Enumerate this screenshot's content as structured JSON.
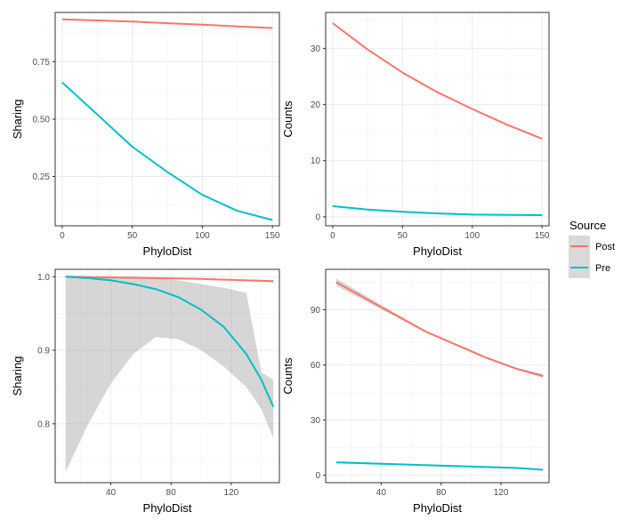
{
  "chart_data": [
    {
      "type": "line",
      "panel": "top-left",
      "xlabel": "PhyloDist",
      "ylabel": "Sharing",
      "xlim": [
        -5,
        155
      ],
      "ylim": [
        0.035,
        0.965
      ],
      "xticks": [
        0,
        50,
        100,
        150
      ],
      "xtick_labels": [
        "0",
        "50",
        "100",
        "150"
      ],
      "yticks": [
        0.25,
        0.5,
        0.75
      ],
      "ytick_labels": [
        "0.25",
        "0.50",
        "0.75"
      ],
      "grid": true,
      "series": [
        {
          "name": "Post",
          "color": "#F8766D",
          "x": [
            0,
            25,
            50,
            75,
            100,
            125,
            150
          ],
          "y": [
            0.935,
            0.93,
            0.925,
            0.918,
            0.912,
            0.904,
            0.897
          ]
        },
        {
          "name": "Pre",
          "color": "#00BFC4",
          "x": [
            0,
            25,
            50,
            75,
            100,
            125,
            150
          ],
          "y": [
            0.66,
            0.52,
            0.38,
            0.27,
            0.17,
            0.1,
            0.06
          ]
        }
      ]
    },
    {
      "type": "line",
      "panel": "top-right",
      "xlabel": "PhyloDist",
      "ylabel": "Counts",
      "xlim": [
        -5,
        155
      ],
      "ylim": [
        -1.6,
        36.4
      ],
      "xticks": [
        0,
        50,
        100,
        150
      ],
      "xtick_labels": [
        "0",
        "50",
        "100",
        "150"
      ],
      "yticks": [
        0,
        10,
        20,
        30
      ],
      "ytick_labels": [
        "0",
        "10",
        "20",
        "30"
      ],
      "grid": true,
      "series": [
        {
          "name": "Post",
          "color": "#F8766D",
          "x": [
            0,
            25,
            50,
            75,
            100,
            125,
            150
          ],
          "y": [
            34.5,
            29.8,
            25.7,
            22.2,
            19.2,
            16.4,
            13.9
          ]
        },
        {
          "name": "Pre",
          "color": "#00BFC4",
          "x": [
            0,
            25,
            50,
            75,
            100,
            125,
            150
          ],
          "y": [
            1.9,
            1.3,
            0.9,
            0.6,
            0.4,
            0.35,
            0.3
          ]
        }
      ]
    },
    {
      "type": "line",
      "panel": "bottom-left",
      "xlabel": "PhyloDist",
      "ylabel": "Sharing",
      "xlim": [
        3,
        152
      ],
      "ylim": [
        0.72,
        1.01
      ],
      "xticks": [
        40,
        80,
        120
      ],
      "xtick_labels": [
        "40",
        "80",
        "120"
      ],
      "yticks": [
        0.8,
        0.9,
        1.0
      ],
      "ytick_labels": [
        "0.8",
        "0.9",
        "1.0"
      ],
      "grid": true,
      "series": [
        {
          "name": "Post",
          "color": "#F8766D",
          "x": [
            10,
            40,
            70,
            100,
            130,
            148
          ],
          "y": [
            1.0,
            0.999,
            0.998,
            0.997,
            0.995,
            0.994
          ],
          "lower": [
            0.999,
            0.998,
            0.997,
            0.996,
            0.994,
            0.992
          ],
          "upper": [
            1.0,
            1.0,
            0.999,
            0.998,
            0.996,
            0.995
          ]
        },
        {
          "name": "Pre",
          "color": "#00BFC4",
          "x": [
            10,
            25,
            40,
            55,
            70,
            85,
            100,
            115,
            130,
            140,
            148
          ],
          "y": [
            1.0,
            0.998,
            0.995,
            0.99,
            0.983,
            0.972,
            0.955,
            0.932,
            0.895,
            0.86,
            0.823
          ],
          "lower": [
            0.735,
            0.8,
            0.855,
            0.895,
            0.918,
            0.915,
            0.9,
            0.878,
            0.85,
            0.82,
            0.78
          ],
          "upper": [
            1.0,
            1.0,
            1.0,
            1.0,
            0.998,
            0.995,
            0.99,
            0.985,
            0.978,
            0.87,
            0.86
          ]
        }
      ]
    },
    {
      "type": "line",
      "panel": "bottom-right",
      "xlabel": "PhyloDist",
      "ylabel": "Counts",
      "xlim": [
        3,
        152
      ],
      "ylim": [
        -4,
        112
      ],
      "xticks": [
        40,
        80,
        120
      ],
      "xtick_labels": [
        "40",
        "80",
        "120"
      ],
      "yticks": [
        0,
        30,
        60,
        90
      ],
      "ytick_labels": [
        "0",
        "30",
        "60",
        "90"
      ],
      "grid": true,
      "series": [
        {
          "name": "Post",
          "color": "#F8766D",
          "x": [
            10,
            30,
            50,
            70,
            90,
            110,
            130,
            148
          ],
          "y": [
            105,
            96,
            87,
            78,
            71,
            64,
            58,
            54
          ],
          "lower": [
            103,
            94.5,
            86,
            77.5,
            70.5,
            63.5,
            57.5,
            53
          ],
          "upper": [
            107,
            97.5,
            88,
            78.5,
            71.5,
            64.5,
            58.5,
            55
          ]
        },
        {
          "name": "Pre",
          "color": "#00BFC4",
          "x": [
            10,
            50,
            90,
            130,
            148
          ],
          "y": [
            7,
            6,
            5,
            4,
            3
          ],
          "lower": [
            6.5,
            5.6,
            4.6,
            3.6,
            2.6
          ],
          "upper": [
            7.5,
            6.4,
            5.4,
            4.4,
            3.4
          ]
        }
      ]
    }
  ],
  "legend": {
    "title": "Source",
    "items": [
      {
        "label": "Post",
        "color": "#F8766D"
      },
      {
        "label": "Pre",
        "color": "#00BFC4"
      }
    ]
  }
}
